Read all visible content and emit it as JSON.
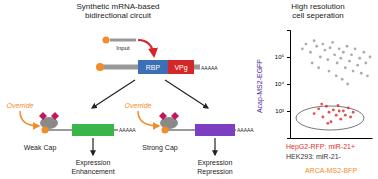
{
  "diagram": {
    "title": [
      "Synthetic mRNA-based",
      "bidirectional circuit"
    ],
    "input": "Input",
    "rbp": "RBP",
    "vpg": "VPg",
    "poly_a": "AAAAA",
    "left": {
      "override": "Override",
      "cap": "Weak Cap",
      "outcome": [
        "Expression",
        "Enhancement"
      ]
    },
    "right": {
      "override": "Override",
      "cap": "Strong Cap",
      "outcome": [
        "Expression",
        "Repression"
      ]
    }
  },
  "chart_data": {
    "type": "scatter",
    "title": [
      "High resolution",
      "cell seperation"
    ],
    "x_label": "ARCA-MS2-BFP",
    "y_label": "Acap-MS2-EGFP",
    "log": true,
    "xlim": [
      10,
      100000
    ],
    "ylim": [
      100,
      1000000
    ],
    "yticks": [
      {
        "value": 1000,
        "label": "10³"
      },
      {
        "value": 10000,
        "label": "10⁴"
      },
      {
        "value": 100000,
        "label": "10⁵"
      }
    ],
    "tick_labels": "y",
    "series": [
      {
        "name": "HEK293: miR-21-",
        "color": "#9e9e9e",
        "x": [
          40,
          60,
          100,
          150,
          200,
          300,
          400,
          500,
          700,
          900,
          1200,
          1500,
          2000,
          2500,
          3000,
          4000,
          5000,
          6000,
          8000,
          10000,
          12000,
          15000,
          20000,
          25000,
          30000,
          40000,
          50000,
          60000,
          80000,
          250,
          800,
          1800,
          3500,
          120,
          6500
        ],
        "values": [
          200000,
          300000,
          150000,
          400000,
          250000,
          100000,
          300000,
          180000,
          80000,
          220000,
          350000,
          120000,
          60000,
          200000,
          90000,
          150000,
          40000,
          250000,
          70000,
          120000,
          30000,
          200000,
          50000,
          90000,
          25000,
          150000,
          60000,
          20000,
          100000,
          40000,
          30000,
          20000,
          15000,
          60000,
          10000
        ]
      },
      {
        "name": "HepG2-RFP: miR-21+",
        "color": "#e0302a",
        "x": [
          150,
          250,
          400,
          600,
          800,
          1000,
          1300,
          1800,
          2200,
          3000,
          4000,
          5000,
          7000,
          9000,
          12000,
          700,
          2500,
          350
        ],
        "values": [
          800,
          1200,
          600,
          1500,
          900,
          400,
          1100,
          700,
          1600,
          500,
          1000,
          700,
          1300,
          600,
          900,
          350,
          1000,
          1800
        ]
      }
    ]
  }
}
